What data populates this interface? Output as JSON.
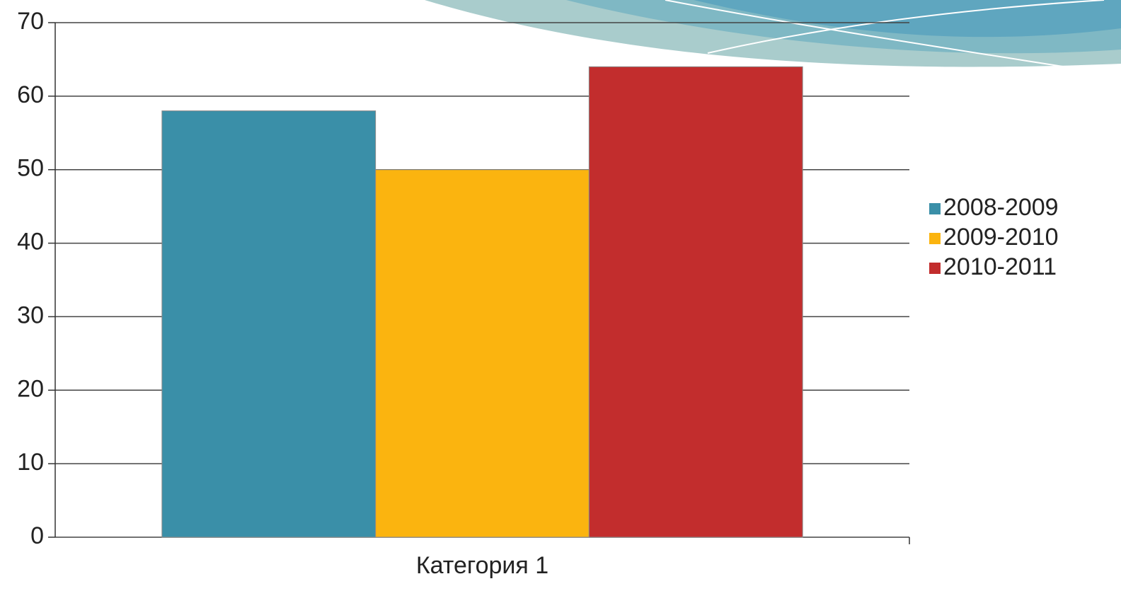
{
  "chart_data": {
    "type": "bar",
    "categories": [
      "Категория 1"
    ],
    "series": [
      {
        "name": "2008-2009",
        "color": "#3a8fa8",
        "values": [
          58
        ]
      },
      {
        "name": "2009-2010",
        "color": "#fbb40f",
        "values": [
          50
        ]
      },
      {
        "name": "2010-2011",
        "color": "#c22d2d",
        "values": [
          64
        ]
      }
    ],
    "ylim": [
      0,
      70
    ],
    "yticks": [
      0,
      10,
      20,
      30,
      40,
      50,
      60,
      70
    ],
    "grid": true,
    "legend": "right"
  }
}
